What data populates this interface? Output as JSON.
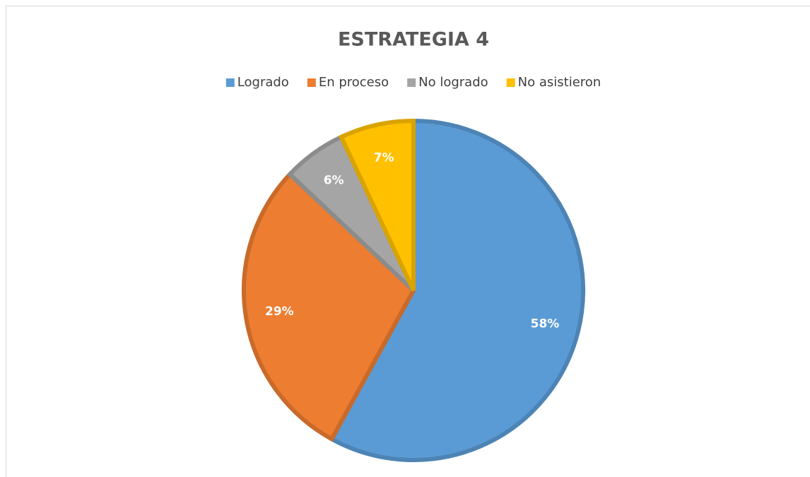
{
  "chart_data": {
    "type": "pie",
    "title": "ESTRATEGIA 4",
    "categories": [
      "Logrado",
      "En proceso",
      "No logrado",
      "No asistieron"
    ],
    "values": [
      58,
      29,
      6,
      7
    ],
    "value_labels": [
      "58%",
      "29%",
      "6%",
      "7%"
    ],
    "colors": [
      "#5b9bd5",
      "#ed7d31",
      "#a5a5a5",
      "#ffc000"
    ],
    "legend": "top"
  }
}
